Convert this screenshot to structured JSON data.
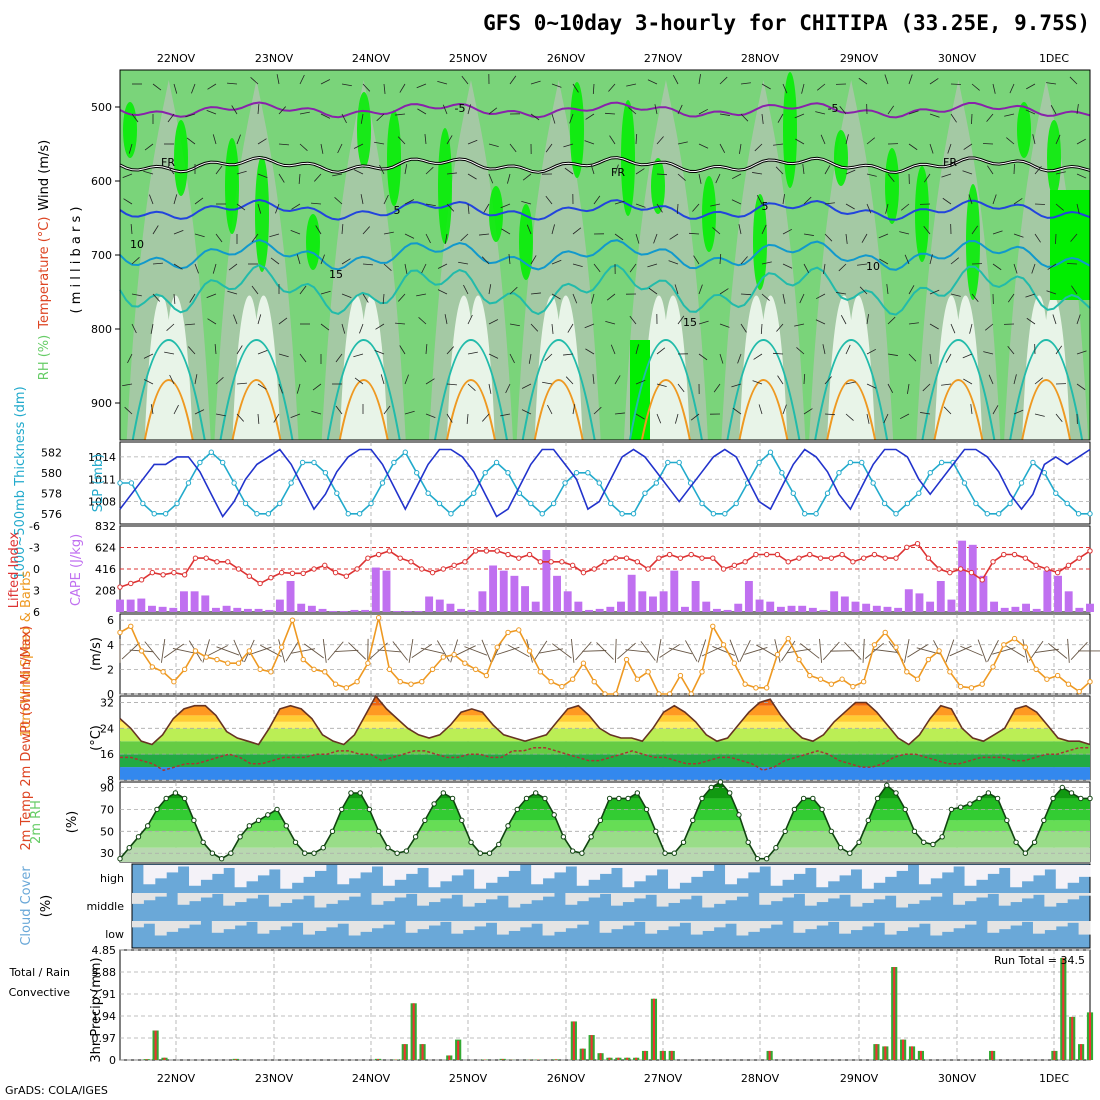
{
  "title": "GFS 0~10day 3-hourly for CHITIPA (33.25E, 9.75S)",
  "footer": "GrADS: COLA/IGES",
  "run_total": "Run Total = 34.5",
  "colors": {
    "rh_light": "#e8f4e8",
    "rh_mid": "#a8c8a8",
    "rh_green": "#66cc66",
    "rh_bright": "#00ee00",
    "temp_purple": "#8822aa",
    "temp_blue": "#2244dd",
    "temp_cyan": "#1199cc",
    "temp_teal": "#22bbaa",
    "temp_orange": "#ee9922",
    "slp": "#2233cc",
    "thickness": "#22aacc",
    "lifted": "#dd3333",
    "cape": "#c070f0",
    "wind": "#ee9922",
    "barb": "#665544",
    "cloud": "#6aa8d8",
    "precip_total": "#33aa33",
    "precip_conv": "#ee3333"
  },
  "chart_data": {
    "type": "meteogram",
    "title": "GFS 0~10day 3-hourly for CHITIPA (33.25E, 9.75S)",
    "x_dates": [
      "22NOV",
      "23NOV",
      "24NOV",
      "25NOV",
      "26NOV",
      "27NOV",
      "28NOV",
      "29NOV",
      "30NOV",
      "1DEC"
    ],
    "panels": [
      {
        "name": "upper_air",
        "ylabel_parts": [
          "RH (%)",
          "Temperature (°C)",
          "Wind (m/s)"
        ],
        "ylabel_units": "( m i l l i b a r s )",
        "yticks": [
          "500",
          "600",
          "700",
          "800",
          "900"
        ],
        "ylim": [
          450,
          950
        ],
        "isotherm_labels": [
          "-5",
          "-5",
          "FR",
          "FR",
          "FR",
          "5",
          "5",
          "10",
          "10",
          "15",
          "15"
        ]
      },
      {
        "name": "slp_thickness",
        "ylabel_left": "1000~500mb Thickness (dm)",
        "ylabel_right": "SLP (mb)",
        "left_ticks": [
          "582",
          "580",
          "578",
          "576"
        ],
        "right_ticks": [
          "1014",
          "1011",
          "1008"
        ],
        "slp_range": [
          1005,
          1016
        ],
        "slp": [
          1007,
          1009,
          1011,
          1013,
          1013,
          1014,
          1014,
          1012,
          1009,
          1006,
          1008,
          1011,
          1013,
          1014,
          1015,
          1013,
          1010,
          1007,
          1009,
          1012,
          1014,
          1015,
          1015,
          1013,
          1010,
          1007,
          1010,
          1013,
          1015,
          1015,
          1014,
          1012,
          1009,
          1006,
          1007,
          1010,
          1013,
          1015,
          1015,
          1013,
          1011,
          1007,
          1008,
          1011,
          1014,
          1015,
          1014,
          1012,
          1010,
          1008,
          1010,
          1012,
          1014,
          1015,
          1014,
          1011,
          1008,
          1007,
          1010,
          1013,
          1015,
          1014,
          1012,
          1009,
          1007,
          1010,
          1013,
          1015,
          1015,
          1014,
          1011,
          1009,
          1011,
          1013,
          1015,
          1015,
          1014,
          1012,
          1009,
          1007,
          1009,
          1013,
          1014,
          1013,
          1014,
          1015
        ],
        "thickness": [
          579,
          579,
          577,
          576,
          576,
          577,
          579,
          581,
          582,
          581,
          579,
          577,
          576,
          576,
          577,
          579,
          581,
          581,
          580,
          578,
          576,
          576,
          577,
          579,
          581,
          582,
          580,
          578,
          577,
          576,
          577,
          578,
          580,
          581,
          580,
          578,
          577,
          576,
          577,
          579,
          580,
          580,
          579,
          577,
          576,
          576,
          578,
          579,
          581,
          581,
          579,
          577,
          576,
          576,
          577,
          579,
          581,
          582,
          580,
          578,
          576,
          576,
          578,
          580,
          581,
          581,
          579,
          577,
          576,
          577,
          578,
          580,
          581,
          581,
          579,
          577,
          576,
          576,
          577,
          579,
          581,
          580,
          578,
          577,
          576,
          576
        ],
        "thickness_range": [
          575,
          583
        ]
      },
      {
        "name": "cape_li",
        "ylabel_left": "Lifted Index",
        "ylabel_right": "CAPE (J/kg)",
        "left_ticks": [
          "-6",
          "-3",
          "0",
          "3",
          "6"
        ],
        "right_ticks": [
          "832",
          "624",
          "416",
          "208"
        ],
        "cape_range": [
          0,
          832
        ],
        "cape": [
          120,
          120,
          130,
          60,
          50,
          40,
          200,
          200,
          160,
          40,
          60,
          40,
          30,
          30,
          20,
          120,
          300,
          80,
          60,
          30,
          10,
          10,
          20,
          20,
          430,
          400,
          10,
          10,
          10,
          150,
          120,
          80,
          30,
          20,
          200,
          450,
          400,
          350,
          250,
          100,
          600,
          350,
          200,
          100,
          20,
          30,
          50,
          100,
          360,
          200,
          150,
          200,
          400,
          50,
          300,
          100,
          30,
          20,
          80,
          300,
          120,
          100,
          50,
          60,
          60,
          40,
          20,
          200,
          150,
          100,
          80,
          60,
          50,
          40,
          220,
          180,
          100,
          300,
          120,
          690,
          650,
          350,
          100,
          40,
          50,
          80,
          30,
          400,
          350,
          200,
          40,
          80
        ],
        "lifted_index": [
          2.5,
          2.0,
          1.5,
          0.5,
          0.8,
          0.5,
          0.8,
          -1.5,
          -1.5,
          -1.0,
          -1.0,
          0.0,
          1.0,
          2.0,
          1.2,
          0.5,
          0.6,
          0.6,
          0.0,
          -0.5,
          0.5,
          1.0,
          0.0,
          -1.5,
          -2.0,
          -2.5,
          -1.5,
          -1.0,
          0.0,
          0.5,
          0.0,
          -0.5,
          -1.0,
          -2.5,
          -2.5,
          -2.5,
          -2.0,
          -1.5,
          -2.0,
          -1.0,
          -1.0,
          -1.0,
          -0.5,
          0.5,
          0.0,
          -1.0,
          -1.5,
          -1.5,
          -1.0,
          0.0,
          -1.5,
          -2.0,
          -1.5,
          -2.0,
          -1.5,
          -1.5,
          0.0,
          -0.5,
          -1.0,
          -2.0,
          -2.0,
          -2.0,
          -1.0,
          -1.5,
          -2.0,
          -1.5,
          -1.5,
          -2.0,
          -1.0,
          -1.5,
          -2.0,
          -1.5,
          -1.5,
          -3.0,
          -3.5,
          -1.5,
          0.0,
          0.5,
          0.0,
          0.5,
          1.5,
          -1.0,
          -2.0,
          -2.0,
          -1.5,
          -0.5,
          0.0,
          0.5,
          -0.5,
          -1.5,
          -2.5
        ]
      },
      {
        "name": "wind10m",
        "ylabel_left": "10m Wind Speed & Barbs",
        "ylabel_right": "(m/s)",
        "ticks": [
          "6",
          "4",
          "2",
          "0"
        ],
        "ylim": [
          0,
          6.5
        ],
        "speed": [
          5.0,
          5.5,
          3.5,
          2.2,
          1.8,
          1.0,
          2.0,
          3.5,
          3.0,
          2.8,
          2.5,
          2.5,
          3.5,
          2.0,
          1.8,
          3.8,
          6.0,
          2.8,
          2.0,
          1.8,
          0.8,
          0.5,
          1.0,
          2.5,
          6.2,
          2.0,
          1.0,
          0.8,
          1.0,
          2.0,
          3.0,
          3.2,
          2.5,
          2.0,
          1.5,
          3.8,
          5.0,
          5.2,
          3.5,
          1.8,
          1.0,
          0.6,
          1.2,
          2.5,
          1.0,
          0.0,
          0.0,
          2.8,
          1.2,
          1.8,
          0.0,
          0.0,
          1.5,
          0.0,
          1.8,
          5.5,
          4.0,
          2.5,
          0.8,
          0.5,
          0.5,
          3.2,
          4.5,
          2.8,
          1.5,
          1.2,
          0.8,
          1.2,
          0.6,
          1.0,
          4.0,
          5.0,
          3.8,
          1.8,
          1.2,
          2.8,
          3.5,
          1.8,
          0.6,
          0.5,
          0.8,
          2.2,
          4.0,
          4.5,
          3.8,
          2.0,
          1.2,
          1.5,
          0.8,
          0.2,
          1.0
        ]
      },
      {
        "name": "temp2m",
        "ylabel_left": "2m Temp 2m DewPt (6hr Min/Max)",
        "ylabel_right": "(°C)",
        "ticks": [
          "32",
          "24",
          "16",
          "8"
        ],
        "ylim": [
          8,
          34
        ],
        "temp": [
          27,
          24,
          20,
          19,
          22,
          27,
          30,
          31,
          31,
          28,
          23,
          21,
          20,
          19,
          24,
          30,
          31,
          30,
          27,
          22,
          20,
          19,
          22,
          28,
          34,
          30,
          27,
          24,
          22,
          21,
          22,
          25,
          29,
          30,
          29,
          25,
          22,
          21,
          20,
          21,
          22,
          26,
          30,
          31,
          28,
          24,
          22,
          21,
          21,
          20,
          24,
          29,
          31,
          29,
          26,
          22,
          20,
          21,
          25,
          29,
          32,
          33,
          28,
          24,
          21,
          20,
          22,
          26,
          29,
          32,
          32,
          29,
          25,
          21,
          19,
          22,
          27,
          31,
          30,
          24,
          21,
          20,
          22,
          24,
          30,
          31,
          29,
          25,
          21,
          20,
          20,
          19
        ],
        "dewpoint": [
          15,
          15,
          14,
          13,
          11,
          12,
          13,
          13,
          14,
          15,
          16,
          15,
          13,
          13,
          14,
          15,
          15,
          15,
          16,
          16,
          17,
          17,
          16,
          16,
          14,
          15,
          16,
          17,
          17,
          16,
          15,
          15,
          16,
          16,
          15,
          15,
          17,
          17,
          18,
          18,
          17,
          16,
          15,
          14,
          14,
          15,
          16,
          17,
          16,
          15,
          15,
          14,
          13,
          13,
          14,
          15,
          15,
          14,
          13,
          11,
          12,
          14,
          15,
          16,
          17,
          16,
          14,
          13,
          12,
          12,
          13,
          15,
          16,
          16,
          15,
          14,
          13,
          13,
          14,
          15,
          15,
          15,
          14,
          14,
          15,
          16,
          16,
          17,
          18,
          18
        ]
      },
      {
        "name": "rh2m",
        "ylabel_left": "2m RH",
        "ylabel_right": "(%)",
        "ticks": [
          "90",
          "70",
          "50",
          "30"
        ],
        "ylim": [
          22,
          95
        ],
        "rh": [
          25,
          35,
          45,
          55,
          70,
          80,
          85,
          80,
          60,
          40,
          30,
          25,
          30,
          45,
          55,
          60,
          65,
          70,
          55,
          40,
          30,
          30,
          35,
          50,
          70,
          85,
          85,
          70,
          50,
          35,
          30,
          32,
          45,
          60,
          75,
          85,
          80,
          60,
          40,
          30,
          30,
          38,
          55,
          70,
          80,
          85,
          80,
          65,
          45,
          32,
          30,
          45,
          60,
          80,
          80,
          80,
          85,
          70,
          50,
          30,
          30,
          40,
          60,
          80,
          90,
          95,
          85,
          65,
          40,
          25,
          25,
          35,
          50,
          70,
          80,
          80,
          70,
          50,
          35,
          30,
          40,
          60,
          80,
          92,
          85,
          70,
          50,
          40,
          38,
          45,
          70,
          72,
          75,
          80,
          85,
          80,
          60,
          40,
          30,
          40,
          60,
          80,
          90,
          85,
          80,
          80
        ]
      },
      {
        "name": "cloud",
        "ylabel_left": "Cloud Cover",
        "ylabel_right": "(%)",
        "levels": [
          "high",
          "middle",
          "low"
        ]
      },
      {
        "name": "precip",
        "ylabel_left_total": "Total / Rain",
        "ylabel_left_conv": "Convective",
        "ylabel_right": "3hr Precip (mm)",
        "ticks": [
          "4.85",
          "3.88",
          "2.91",
          "1.94",
          "0.97",
          "0"
        ],
        "ylim": [
          0,
          4.85
        ],
        "total": [
          0,
          0,
          0,
          0.04,
          1.3,
          0.1,
          0,
          0,
          0,
          0,
          0,
          0,
          0,
          0.05,
          0,
          0,
          0,
          0,
          0,
          0,
          0,
          0,
          0,
          0,
          0,
          0,
          0,
          0,
          0,
          0.05,
          0,
          0.02,
          0.7,
          2.5,
          0.7,
          0,
          0,
          0.2,
          0.9,
          0,
          0,
          0.02,
          0,
          0.05,
          0.01,
          0,
          0.01,
          0.02,
          0,
          0.03,
          0,
          1.7,
          0.5,
          1.1,
          0.3,
          0.1,
          0.1,
          0.1,
          0.1,
          0.4,
          2.7,
          0.4,
          0.4,
          0,
          0,
          0,
          0,
          0,
          0,
          0,
          0,
          0,
          0,
          0.4,
          0,
          0,
          0,
          0,
          0,
          0,
          0,
          0,
          0,
          0,
          0,
          0.7,
          0.6,
          4.1,
          0.9,
          0.6,
          0.4,
          0,
          0,
          0,
          0,
          0,
          0,
          0,
          0.4,
          0,
          0,
          0,
          0,
          0,
          0,
          0.4,
          4.5,
          1.9,
          0.7,
          2.1
        ],
        "convective": [
          0,
          0,
          0,
          0.03,
          1.3,
          0.1,
          0,
          0,
          0,
          0,
          0,
          0,
          0,
          0.04,
          0,
          0,
          0,
          0,
          0,
          0,
          0,
          0,
          0,
          0,
          0,
          0,
          0,
          0,
          0,
          0.04,
          0,
          0.02,
          0.7,
          2.5,
          0.7,
          0,
          0,
          0.2,
          0.85,
          0,
          0,
          0.02,
          0,
          0.04,
          0.01,
          0,
          0.01,
          0.02,
          0,
          0.03,
          0,
          1.7,
          0.5,
          1.1,
          0.3,
          0.1,
          0.1,
          0.1,
          0.1,
          0.4,
          2.7,
          0.4,
          0.4,
          0,
          0,
          0,
          0,
          0,
          0,
          0,
          0,
          0,
          0,
          0.4,
          0,
          0,
          0,
          0,
          0,
          0,
          0,
          0,
          0,
          0,
          0,
          0.7,
          0.6,
          4.1,
          0.9,
          0.6,
          0.4,
          0,
          0,
          0,
          0,
          0,
          0,
          0,
          0.4,
          0,
          0,
          0,
          0,
          0,
          0,
          0.4,
          4.5,
          1.9,
          0.7,
          2.1
        ]
      }
    ]
  }
}
